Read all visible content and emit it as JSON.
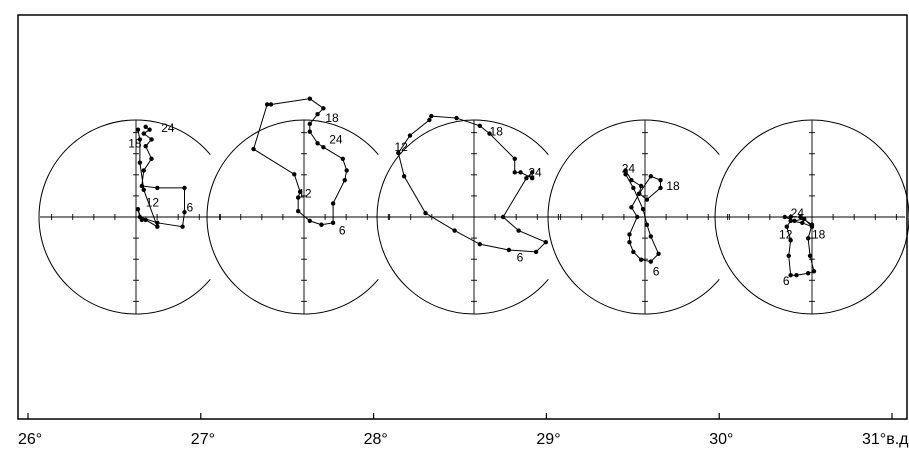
{
  "chart_data": {
    "type": "scatter",
    "x_axis": {
      "ticks": [
        {
          "value": 26,
          "label": "26°"
        },
        {
          "value": 27,
          "label": "27°"
        },
        {
          "value": 28,
          "label": "28°"
        },
        {
          "value": 29,
          "label": "29°"
        },
        {
          "value": 30,
          "label": "30°"
        },
        {
          "value": 31,
          "label": "31°в.д"
        }
      ],
      "range": [
        26,
        31.2
      ]
    },
    "hodographs": [
      {
        "center_lon": 26.65,
        "points": [
          [
            0.1,
            0.93
          ],
          [
            0.14,
            0.9
          ],
          [
            0.08,
            0.86
          ],
          [
            0.16,
            0.8
          ],
          [
            0.1,
            0.73
          ],
          [
            0.16,
            0.6
          ],
          [
            0.08,
            0.48
          ],
          [
            0.06,
            0.32
          ],
          [
            0.22,
            0.3
          ],
          [
            0.5,
            0.3
          ],
          [
            0.5,
            0.05
          ],
          [
            0.48,
            -0.1
          ],
          [
            0.22,
            -0.06
          ],
          [
            0.04,
            0.0
          ],
          [
            0.02,
            0.08
          ],
          [
            0.06,
            -0.03
          ],
          [
            0.1,
            -0.03
          ],
          [
            0.22,
            -0.1
          ],
          [
            0.08,
            0.28
          ],
          [
            0.04,
            0.56
          ],
          [
            0.04,
            0.8
          ],
          [
            0.02,
            0.9
          ]
        ],
        "labels": [
          {
            "text": "24",
            "x": 0.26,
            "y": 0.92
          },
          {
            "text": "18",
            "x": -0.08,
            "y": 0.76
          },
          {
            "text": "12",
            "x": 0.1,
            "y": 0.15
          },
          {
            "text": "6",
            "x": 0.52,
            "y": 0.1
          }
        ]
      },
      {
        "center_lon": 27.6,
        "points": [
          [
            -0.34,
            1.16
          ],
          [
            0.06,
            1.22
          ],
          [
            0.2,
            1.12
          ],
          [
            0.14,
            1.06
          ],
          [
            0.06,
            0.96
          ],
          [
            0.06,
            0.88
          ],
          [
            0.14,
            0.76
          ],
          [
            0.2,
            0.72
          ],
          [
            0.4,
            0.6
          ],
          [
            0.44,
            0.48
          ],
          [
            0.42,
            0.38
          ],
          [
            0.3,
            0.14
          ],
          [
            0.3,
            -0.06
          ],
          [
            0.18,
            -0.08
          ],
          [
            0.06,
            -0.04
          ],
          [
            -0.06,
            0.06
          ],
          [
            -0.06,
            0.2
          ],
          [
            -0.04,
            0.26
          ],
          [
            -0.1,
            0.44
          ],
          [
            -0.52,
            0.7
          ],
          [
            -0.38,
            1.16
          ]
        ],
        "labels": [
          {
            "text": "18",
            "x": 0.22,
            "y": 1.02
          },
          {
            "text": "24",
            "x": 0.26,
            "y": 0.8
          },
          {
            "text": "12",
            "x": -0.06,
            "y": 0.24
          },
          {
            "text": "6",
            "x": 0.36,
            "y": -0.14
          }
        ]
      },
      {
        "center_lon": 28.6,
        "points": [
          [
            -0.44,
            1.04
          ],
          [
            -0.18,
            1.02
          ],
          [
            0.06,
            0.94
          ],
          [
            0.16,
            0.86
          ],
          [
            0.42,
            0.6
          ],
          [
            0.42,
            0.46
          ],
          [
            0.48,
            0.46
          ],
          [
            0.6,
            0.4
          ],
          [
            0.6,
            0.46
          ],
          [
            0.54,
            0.4
          ],
          [
            0.3,
            0.0
          ],
          [
            0.46,
            -0.14
          ],
          [
            0.74,
            -0.26
          ],
          [
            0.64,
            -0.36
          ],
          [
            0.36,
            -0.34
          ],
          [
            0.06,
            -0.28
          ],
          [
            -0.2,
            -0.14
          ],
          [
            -0.5,
            0.04
          ],
          [
            -0.72,
            0.42
          ],
          [
            -0.78,
            0.66
          ],
          [
            -0.66,
            0.84
          ],
          [
            -0.46,
            1.0
          ]
        ],
        "labels": [
          {
            "text": "18",
            "x": 0.16,
            "y": 0.88
          },
          {
            "text": "24",
            "x": 0.56,
            "y": 0.46
          },
          {
            "text": "12",
            "x": -0.82,
            "y": 0.72
          },
          {
            "text": "6",
            "x": 0.44,
            "y": -0.42
          }
        ]
      },
      {
        "center_lon": 29.6,
        "points": [
          [
            -0.2,
            0.48
          ],
          [
            -0.14,
            0.38
          ],
          [
            -0.04,
            0.32
          ],
          [
            -0.06,
            0.24
          ],
          [
            0.02,
            0.18
          ],
          [
            0.16,
            0.3
          ],
          [
            0.16,
            0.38
          ],
          [
            0.06,
            0.42
          ],
          [
            -0.06,
            0.24
          ],
          [
            -0.14,
            0.1
          ],
          [
            -0.08,
            0.0
          ],
          [
            -0.16,
            -0.18
          ],
          [
            -0.16,
            -0.26
          ],
          [
            -0.12,
            -0.36
          ],
          [
            -0.04,
            -0.44
          ],
          [
            0.06,
            -0.46
          ],
          [
            0.14,
            -0.38
          ],
          [
            0.06,
            -0.2
          ],
          [
            0.02,
            -0.08
          ],
          [
            -0.02,
            0.08
          ],
          [
            -0.12,
            0.3
          ],
          [
            -0.2,
            0.44
          ]
        ],
        "labels": [
          {
            "text": "24",
            "x": -0.24,
            "y": 0.5
          },
          {
            "text": "18",
            "x": 0.22,
            "y": 0.32
          },
          {
            "text": "6",
            "x": 0.08,
            "y": -0.56
          }
        ]
      },
      {
        "center_lon": 30.6,
        "points": [
          [
            -0.28,
            0.0
          ],
          [
            -0.18,
            -0.04
          ],
          [
            -0.08,
            -0.02
          ],
          [
            0.0,
            -0.1
          ],
          [
            -0.1,
            -0.06
          ],
          [
            -0.22,
            -0.04
          ],
          [
            -0.26,
            -0.1
          ],
          [
            -0.22,
            -0.24
          ],
          [
            -0.24,
            -0.4
          ],
          [
            -0.22,
            -0.6
          ],
          [
            -0.16,
            -0.6
          ],
          [
            -0.04,
            -0.58
          ],
          [
            0.02,
            -0.56
          ],
          [
            -0.02,
            -0.4
          ],
          [
            -0.04,
            -0.22
          ],
          [
            0.0,
            -0.08
          ],
          [
            -0.12,
            0.0
          ],
          [
            -0.22,
            0.0
          ]
        ],
        "labels": [
          {
            "text": "24",
            "x": -0.22,
            "y": 0.04
          },
          {
            "text": "12",
            "x": -0.34,
            "y": -0.18
          },
          {
            "text": "18",
            "x": 0.0,
            "y": -0.18
          },
          {
            "text": "6",
            "x": -0.3,
            "y": -0.66
          }
        ]
      }
    ]
  }
}
